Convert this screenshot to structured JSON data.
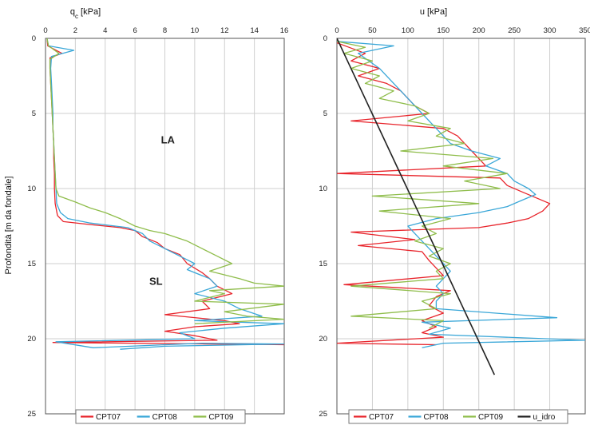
{
  "ylabel": "Profondità [m da fondale]",
  "colors": {
    "CPT07": "#e8242b",
    "CPT08": "#3aa7d8",
    "CPT09": "#8fbd4b",
    "u_idro": "#222222"
  },
  "chart_data": [
    {
      "type": "line",
      "title": "q",
      "title_sub": "c",
      "title_unit": " [kPa]",
      "xlim": [
        0,
        16
      ],
      "ylim": [
        0,
        25
      ],
      "x_ticks": [
        "0",
        "2",
        "4",
        "6",
        "8",
        "10",
        "12",
        "14",
        "16"
      ],
      "y_ticks": [
        "0",
        "5",
        "10",
        "15",
        "20",
        "25"
      ],
      "legend_position": "bottom",
      "annotations": [
        {
          "text": "LA",
          "x": 8.2,
          "y": 7.0
        },
        {
          "text": "SL",
          "x": 7.4,
          "y": 16.4
        }
      ],
      "series": [
        {
          "name": "CPT07",
          "color": "#e8242b",
          "points": [
            [
              0.1,
              0
            ],
            [
              0.15,
              0.5
            ],
            [
              1.1,
              1.0
            ],
            [
              0.3,
              1.3
            ],
            [
              0.3,
              2
            ],
            [
              0.35,
              3
            ],
            [
              0.4,
              4
            ],
            [
              0.45,
              5
            ],
            [
              0.5,
              6
            ],
            [
              0.55,
              7
            ],
            [
              0.55,
              8
            ],
            [
              0.6,
              9
            ],
            [
              0.6,
              10
            ],
            [
              0.65,
              11
            ],
            [
              0.8,
              11.8
            ],
            [
              1.2,
              12.2
            ],
            [
              3.0,
              12.4
            ],
            [
              5.0,
              12.6
            ],
            [
              6.0,
              12.8
            ],
            [
              6.5,
              13.2
            ],
            [
              7.5,
              13.6
            ],
            [
              8.0,
              14.0
            ],
            [
              9.0,
              14.4
            ],
            [
              9.5,
              15.0
            ],
            [
              10.5,
              15.6
            ],
            [
              11.0,
              16.0
            ],
            [
              11.5,
              16.5
            ],
            [
              12.5,
              17.0
            ],
            [
              10.5,
              17.5
            ],
            [
              11.0,
              18.0
            ],
            [
              8.0,
              18.4
            ],
            [
              12.0,
              18.8
            ],
            [
              13.0,
              19.0
            ],
            [
              10.0,
              19.2
            ],
            [
              8.0,
              19.5
            ],
            [
              10.0,
              19.8
            ],
            [
              11.5,
              20.1
            ],
            [
              0.5,
              20.25
            ],
            [
              16.0,
              20.4
            ]
          ]
        },
        {
          "name": "CPT08",
          "color": "#3aa7d8",
          "points": [
            [
              0.1,
              0
            ],
            [
              0.2,
              0.5
            ],
            [
              1.9,
              0.8
            ],
            [
              0.4,
              1.2
            ],
            [
              0.35,
              2
            ],
            [
              0.4,
              3
            ],
            [
              0.45,
              4
            ],
            [
              0.5,
              5
            ],
            [
              0.5,
              6
            ],
            [
              0.55,
              7
            ],
            [
              0.6,
              8
            ],
            [
              0.65,
              9
            ],
            [
              0.7,
              10
            ],
            [
              0.75,
              11
            ],
            [
              1.0,
              11.6
            ],
            [
              1.5,
              12.0
            ],
            [
              3.0,
              12.3
            ],
            [
              5.5,
              12.6
            ],
            [
              6.5,
              13.0
            ],
            [
              7.0,
              13.5
            ],
            [
              8.0,
              14.0
            ],
            [
              9.0,
              14.5
            ],
            [
              10.0,
              15.0
            ],
            [
              9.5,
              15.4
            ],
            [
              11.0,
              16.0
            ],
            [
              11.5,
              16.5
            ],
            [
              10.0,
              17.0
            ],
            [
              12.0,
              17.5
            ],
            [
              13.0,
              18.0
            ],
            [
              14.5,
              18.5
            ],
            [
              10.0,
              18.8
            ],
            [
              16.0,
              19.0
            ],
            [
              12.0,
              19.3
            ],
            [
              9.0,
              19.6
            ],
            [
              10.0,
              20.0
            ],
            [
              0.7,
              20.2
            ],
            [
              3.2,
              20.6
            ],
            [
              10.5,
              20.3
            ],
            [
              16.0,
              20.35
            ],
            [
              8.0,
              20.5
            ],
            [
              5.0,
              20.7
            ]
          ]
        },
        {
          "name": "CPT09",
          "color": "#8fbd4b",
          "points": [
            [
              0.1,
              0
            ],
            [
              0.2,
              0.5
            ],
            [
              0.9,
              1.0
            ],
            [
              0.3,
              1.4
            ],
            [
              0.3,
              2
            ],
            [
              0.35,
              3
            ],
            [
              0.4,
              4
            ],
            [
              0.45,
              5
            ],
            [
              0.5,
              6
            ],
            [
              0.55,
              7
            ],
            [
              0.6,
              8
            ],
            [
              0.65,
              9
            ],
            [
              0.7,
              10
            ],
            [
              0.9,
              10.5
            ],
            [
              2.0,
              10.9
            ],
            [
              3.0,
              11.3
            ],
            [
              4.0,
              11.6
            ],
            [
              5.0,
              12.0
            ],
            [
              6.0,
              12.5
            ],
            [
              7.0,
              12.8
            ],
            [
              8.0,
              13.0
            ],
            [
              9.5,
              13.5
            ],
            [
              10.5,
              14.0
            ],
            [
              11.5,
              14.5
            ],
            [
              12.5,
              15.0
            ],
            [
              11.0,
              15.5
            ],
            [
              13.0,
              16.0
            ],
            [
              14.0,
              16.3
            ],
            [
              16.0,
              16.5
            ],
            [
              11.0,
              16.8
            ],
            [
              12.0,
              17.0
            ],
            [
              10.0,
              17.5
            ],
            [
              16.0,
              17.7
            ],
            [
              12.0,
              18.2
            ],
            [
              13.5,
              18.5
            ],
            [
              16.0,
              18.7
            ],
            [
              10.0,
              19.0
            ]
          ]
        }
      ]
    },
    {
      "type": "line",
      "title": "u",
      "title_sub": "",
      "title_unit": " [kPa]",
      "xlim": [
        0,
        350
      ],
      "ylim": [
        0,
        25
      ],
      "x_ticks": [
        "0",
        "50",
        "100",
        "150",
        "200",
        "250",
        "300",
        "350"
      ],
      "y_ticks": [
        "0",
        "5",
        "10",
        "15",
        "20",
        "25"
      ],
      "legend_position": "bottom",
      "series": [
        {
          "name": "CPT07",
          "color": "#e8242b",
          "points": [
            [
              0,
              0.3
            ],
            [
              40,
              1
            ],
            [
              20,
              1.5
            ],
            [
              60,
              2
            ],
            [
              30,
              2.5
            ],
            [
              70,
              3
            ],
            [
              90,
              3.5
            ],
            [
              100,
              4
            ],
            [
              110,
              4.5
            ],
            [
              130,
              5
            ],
            [
              20,
              5.5
            ],
            [
              150,
              6
            ],
            [
              170,
              6.5
            ],
            [
              180,
              7
            ],
            [
              190,
              7.5
            ],
            [
              200,
              8
            ],
            [
              210,
              8.5
            ],
            [
              0,
              9.0
            ],
            [
              230,
              9.3
            ],
            [
              240,
              9.8
            ],
            [
              260,
              10.2
            ],
            [
              280,
              10.6
            ],
            [
              300,
              11.0
            ],
            [
              290,
              11.5
            ],
            [
              270,
              12
            ],
            [
              240,
              12.3
            ],
            [
              200,
              12.6
            ],
            [
              20,
              12.9
            ],
            [
              110,
              13.4
            ],
            [
              30,
              13.8
            ],
            [
              120,
              14.2
            ],
            [
              130,
              14.8
            ],
            [
              140,
              15.3
            ],
            [
              150,
              15.8
            ],
            [
              10,
              16.4
            ],
            [
              160,
              16.8
            ],
            [
              140,
              17.2
            ],
            [
              130,
              17.8
            ],
            [
              150,
              18.3
            ],
            [
              120,
              18.8
            ],
            [
              140,
              19.2
            ],
            [
              120,
              19.6
            ],
            [
              150,
              19.9
            ],
            [
              0,
              20.3
            ],
            [
              140,
              20.4
            ]
          ]
        },
        {
          "name": "CPT08",
          "color": "#3aa7d8",
          "points": [
            [
              0,
              0.2
            ],
            [
              80,
              0.5
            ],
            [
              30,
              1
            ],
            [
              60,
              2
            ],
            [
              80,
              3
            ],
            [
              100,
              4
            ],
            [
              120,
              5
            ],
            [
              140,
              6
            ],
            [
              160,
              7
            ],
            [
              190,
              7.5
            ],
            [
              230,
              8
            ],
            [
              210,
              8.5
            ],
            [
              240,
              9
            ],
            [
              250,
              9.5
            ],
            [
              270,
              10
            ],
            [
              280,
              10.4
            ],
            [
              260,
              10.8
            ],
            [
              240,
              11.2
            ],
            [
              200,
              11.6
            ],
            [
              140,
              12
            ],
            [
              100,
              12.5
            ],
            [
              110,
              13
            ],
            [
              120,
              13.5
            ],
            [
              130,
              14
            ],
            [
              140,
              14.5
            ],
            [
              150,
              15
            ],
            [
              160,
              15.5
            ],
            [
              150,
              16
            ],
            [
              140,
              16.5
            ],
            [
              150,
              17
            ],
            [
              140,
              17.5
            ],
            [
              140,
              18
            ],
            [
              310,
              18.6
            ],
            [
              120,
              18.9
            ],
            [
              160,
              19.3
            ],
            [
              130,
              19.7
            ],
            [
              350,
              20.1
            ],
            [
              150,
              20.3
            ],
            [
              120,
              20.6
            ]
          ]
        },
        {
          "name": "CPT09",
          "color": "#8fbd4b",
          "points": [
            [
              0,
              0.2
            ],
            [
              40,
              0.6
            ],
            [
              10,
              1
            ],
            [
              50,
              1.5
            ],
            [
              20,
              2
            ],
            [
              60,
              2.5
            ],
            [
              40,
              3
            ],
            [
              80,
              3.5
            ],
            [
              60,
              4
            ],
            [
              110,
              4.5
            ],
            [
              130,
              5
            ],
            [
              100,
              5.5
            ],
            [
              160,
              6
            ],
            [
              140,
              6.5
            ],
            [
              180,
              7
            ],
            [
              90,
              7.5
            ],
            [
              220,
              8
            ],
            [
              150,
              8.5
            ],
            [
              240,
              9
            ],
            [
              180,
              9.5
            ],
            [
              230,
              10
            ],
            [
              50,
              10.5
            ],
            [
              200,
              11
            ],
            [
              60,
              11.5
            ],
            [
              160,
              12
            ],
            [
              120,
              12.5
            ],
            [
              140,
              13
            ],
            [
              110,
              13.5
            ],
            [
              150,
              14
            ],
            [
              130,
              14.5
            ],
            [
              160,
              15
            ],
            [
              140,
              15.5
            ],
            [
              150,
              16
            ],
            [
              20,
              16.5
            ],
            [
              160,
              17
            ],
            [
              120,
              17.5
            ],
            [
              140,
              18
            ],
            [
              20,
              18.5
            ],
            [
              150,
              18.8
            ],
            [
              130,
              19.3
            ]
          ]
        },
        {
          "name": "u_idro",
          "color": "#222222",
          "points": [
            [
              0,
              0
            ],
            [
              222,
              22.4
            ]
          ]
        }
      ]
    }
  ]
}
